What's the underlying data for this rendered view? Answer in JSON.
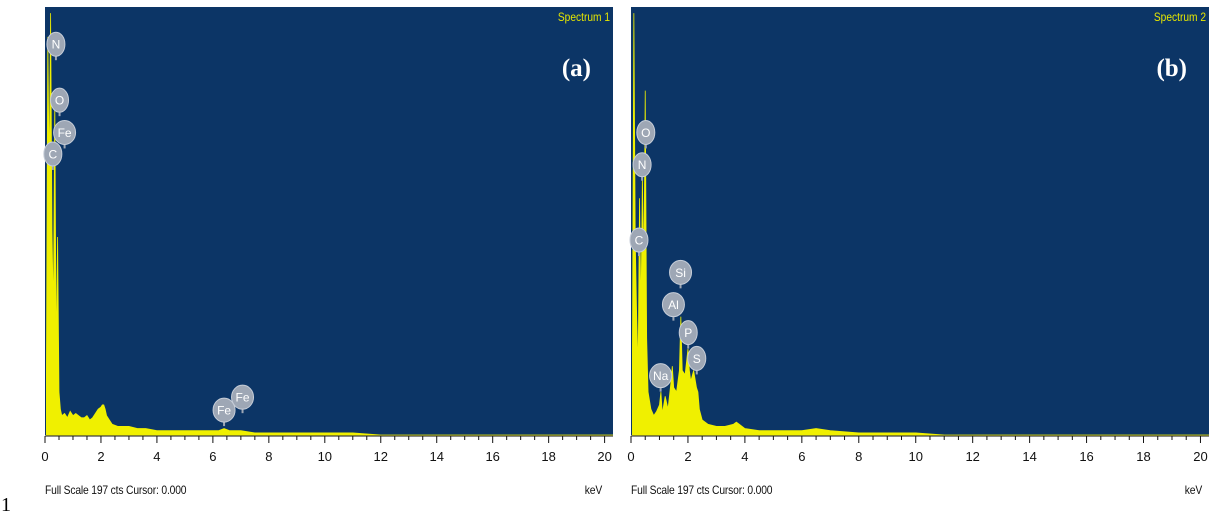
{
  "figure_number": "1",
  "colors": {
    "plot_background": "#0c3566",
    "spectrum": "#f0f000",
    "marker_fill": "#9ea7b5",
    "axis": "#111111"
  },
  "chart_data": [
    {
      "type": "area",
      "title": "Spectrum 1",
      "panel_label": "(a)",
      "xlabel": "keV",
      "footer": "Full Scale 197 cts Cursor: 0.000",
      "xlim": [
        0,
        20.3
      ],
      "ylim": [
        0,
        197
      ],
      "x_ticks": [
        "0",
        "2",
        "4",
        "6",
        "8",
        "10",
        "12",
        "14",
        "16",
        "18",
        "20"
      ],
      "grid": false,
      "spectrum": {
        "x": [
          0.05,
          0.1,
          0.15,
          0.2,
          0.25,
          0.3,
          0.35,
          0.4,
          0.45,
          0.5,
          0.55,
          0.6,
          0.7,
          0.8,
          0.9,
          1.0,
          1.1,
          1.2,
          1.3,
          1.4,
          1.5,
          1.6,
          1.7,
          1.8,
          1.9,
          2.0,
          2.05,
          2.1,
          2.15,
          2.2,
          2.3,
          2.4,
          2.6,
          2.8,
          3.0,
          3.3,
          3.6,
          4.0,
          4.5,
          5.0,
          5.5,
          6.0,
          6.2,
          6.4,
          6.6,
          7.0,
          7.5,
          8.0,
          9.0,
          10.0,
          11.0,
          12.0,
          20.3
        ],
        "y": [
          30,
          185,
          120,
          196,
          95,
          55,
          155,
          35,
          92,
          20,
          12,
          9,
          10,
          8,
          11,
          9,
          10,
          9,
          8,
          8,
          9,
          7,
          8,
          10,
          12,
          13,
          14,
          14,
          12,
          9,
          7,
          5,
          4,
          4,
          4,
          3,
          3,
          2,
          2,
          2,
          2,
          2,
          2,
          3,
          2,
          2,
          1,
          1,
          1,
          1,
          1,
          0,
          0
        ]
      },
      "peaks": [
        {
          "label": "N",
          "x": 0.39,
          "y": 176
        },
        {
          "label": "O",
          "x": 0.52,
          "y": 150
        },
        {
          "label": "Fe",
          "x": 0.7,
          "y": 135
        },
        {
          "label": "C",
          "x": 0.28,
          "y": 125
        },
        {
          "label": "Fe",
          "x": 6.4,
          "y": 6
        },
        {
          "label": "Fe",
          "x": 7.06,
          "y": 12
        }
      ]
    },
    {
      "type": "area",
      "title": "Spectrum 2",
      "panel_label": "(b)",
      "xlabel": "keV",
      "footer": "Full Scale 197 cts Cursor: 0.000",
      "xlim": [
        0,
        20.3
      ],
      "ylim": [
        0,
        197
      ],
      "x_ticks": [
        "0",
        "2",
        "4",
        "6",
        "8",
        "10",
        "12",
        "14",
        "16",
        "18",
        "20"
      ],
      "grid": false,
      "spectrum": {
        "x": [
          0.05,
          0.1,
          0.15,
          0.2,
          0.25,
          0.3,
          0.35,
          0.4,
          0.45,
          0.5,
          0.55,
          0.6,
          0.7,
          0.8,
          0.9,
          1.0,
          1.05,
          1.1,
          1.2,
          1.3,
          1.4,
          1.45,
          1.5,
          1.6,
          1.7,
          1.75,
          1.8,
          1.9,
          2.0,
          2.05,
          2.1,
          2.2,
          2.3,
          2.35,
          2.4,
          2.5,
          2.7,
          3.0,
          3.3,
          3.6,
          3.7,
          3.8,
          4.0,
          4.5,
          5.0,
          5.5,
          6.0,
          6.5,
          7.0,
          8.0,
          9.0,
          10.0,
          11.0,
          20.3
        ],
        "y": [
          40,
          196,
          90,
          55,
          30,
          110,
          55,
          120,
          75,
          160,
          45,
          20,
          12,
          9,
          11,
          14,
          20,
          10,
          18,
          12,
          24,
          32,
          22,
          20,
          30,
          55,
          30,
          28,
          40,
          30,
          25,
          30,
          22,
          20,
          12,
          7,
          5,
          4,
          4,
          5,
          6,
          5,
          3,
          2,
          2,
          2,
          2,
          3,
          2,
          1,
          1,
          1,
          0,
          0
        ]
      },
      "peaks": [
        {
          "label": "O",
          "x": 0.52,
          "y": 135
        },
        {
          "label": "N",
          "x": 0.39,
          "y": 120
        },
        {
          "label": "C",
          "x": 0.28,
          "y": 85
        },
        {
          "label": "Si",
          "x": 1.74,
          "y": 70
        },
        {
          "label": "Al",
          "x": 1.49,
          "y": 55
        },
        {
          "label": "P",
          "x": 2.01,
          "y": 42
        },
        {
          "label": "S",
          "x": 2.31,
          "y": 30
        },
        {
          "label": "Na",
          "x": 1.04,
          "y": 22
        }
      ]
    }
  ]
}
